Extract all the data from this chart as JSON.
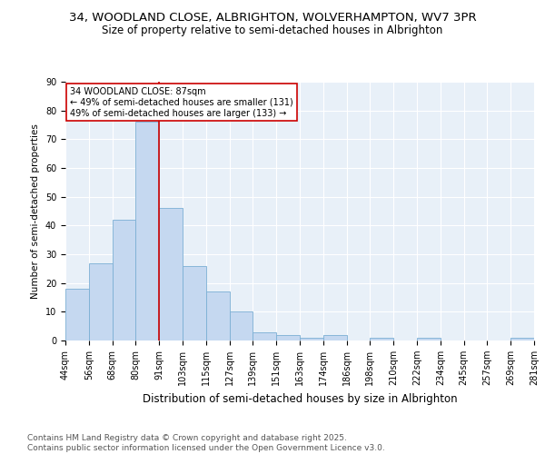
{
  "title1": "34, WOODLAND CLOSE, ALBRIGHTON, WOLVERHAMPTON, WV7 3PR",
  "title2": "Size of property relative to semi-detached houses in Albrighton",
  "xlabel": "Distribution of semi-detached houses by size in Albrighton",
  "ylabel": "Number of semi-detached properties",
  "bins": [
    "44sqm",
    "56sqm",
    "68sqm",
    "80sqm",
    "91sqm",
    "103sqm",
    "115sqm",
    "127sqm",
    "139sqm",
    "151sqm",
    "163sqm",
    "174sqm",
    "186sqm",
    "198sqm",
    "210sqm",
    "222sqm",
    "234sqm",
    "245sqm",
    "257sqm",
    "269sqm",
    "281sqm"
  ],
  "values": [
    18,
    27,
    42,
    76,
    46,
    26,
    17,
    10,
    3,
    2,
    1,
    2,
    0,
    1,
    0,
    1,
    0,
    0,
    0,
    1
  ],
  "bar_color": "#c5d8f0",
  "bar_edge_color": "#7bafd4",
  "highlight_bin_index": 3,
  "red_line_color": "#cc0000",
  "annotation_text": "34 WOODLAND CLOSE: 87sqm\n← 49% of semi-detached houses are smaller (131)\n49% of semi-detached houses are larger (133) →",
  "annotation_box_color": "white",
  "annotation_box_edge": "#cc0000",
  "ylim": [
    0,
    90
  ],
  "yticks": [
    0,
    10,
    20,
    30,
    40,
    50,
    60,
    70,
    80,
    90
  ],
  "background_color": "#e8f0f8",
  "grid_color": "white",
  "footnote": "Contains HM Land Registry data © Crown copyright and database right 2025.\nContains public sector information licensed under the Open Government Licence v3.0.",
  "title1_fontsize": 9.5,
  "title2_fontsize": 8.5,
  "xlabel_fontsize": 8.5,
  "ylabel_fontsize": 7.5,
  "tick_fontsize": 7,
  "footnote_fontsize": 6.5,
  "annotation_fontsize": 7
}
